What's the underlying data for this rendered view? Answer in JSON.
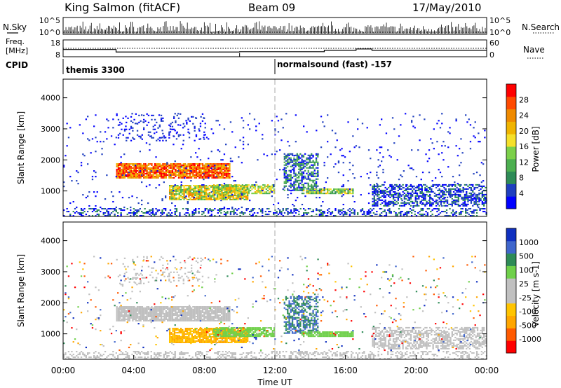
{
  "header": {
    "station": "King Salmon (fitACF)",
    "beam": "Beam 09",
    "date": "17/May/2010"
  },
  "left_labels": {
    "nsky": "N.Sky",
    "freq": "Freq.",
    "freq_unit": "[MHz]",
    "cpid": "CPID"
  },
  "right_labels": {
    "nsearch": "N.Search",
    "nave": "Nave"
  },
  "cpid_segments": [
    {
      "label": "themis 3300",
      "start_hour": 0
    },
    {
      "label": "normalsound (fast) -157",
      "start_hour": 12
    }
  ],
  "colors": {
    "power": [
      "#0000ff",
      "#1f3fbf",
      "#2e8b57",
      "#4caf50",
      "#7cd04a",
      "#f5e02a",
      "#f0b400",
      "#ef8a00",
      "#ff4a00",
      "#ff0000"
    ],
    "velocity": [
      "#ff0000",
      "#ff5a00",
      "#ffa600",
      "#ffc400",
      "#c0c0c0",
      "#c0c0c0",
      "#6fd04a",
      "#2e8b57",
      "#3f66cc",
      "#1030c0"
    ],
    "frame": "#000000",
    "dash_line": "#aaaaaa"
  },
  "chart_data": [
    {
      "type": "line",
      "name": "nsky-nsearch",
      "yaxis_left_ticks": [
        "10^5",
        "10^0"
      ],
      "yaxis_right_ticks": [
        "10^5",
        "10^0"
      ],
      "xlim": [
        0,
        24
      ]
    },
    {
      "type": "line",
      "name": "freq-nave",
      "yaxis_left_ticks": [
        "18",
        "8"
      ],
      "yaxis_right_ticks": [
        "60",
        "0"
      ],
      "freq_mhz": [
        {
          "x_start": 0.0,
          "x_end": 3.0,
          "value": 12.3
        },
        {
          "x_start": 3.0,
          "x_end": 10.0,
          "value": 10.8
        },
        {
          "x_start": 10.0,
          "x_end": 14.8,
          "value": 11.0
        },
        {
          "x_start": 14.8,
          "x_end": 16.6,
          "value": 11.8
        },
        {
          "x_start": 16.6,
          "x_end": 17.5,
          "value": 12.6
        },
        {
          "x_start": 17.5,
          "x_end": 24.0,
          "value": 11.8
        }
      ],
      "nave_value": 30,
      "xlim": [
        0,
        24
      ]
    },
    {
      "type": "heatmap",
      "name": "power",
      "ylabel": "Slant Range [km]",
      "ylim": [
        180,
        4600
      ],
      "yticks": [
        1000,
        2000,
        3000,
        4000
      ],
      "xlim": [
        0,
        24
      ],
      "colorbar_label": "Power [dB]",
      "colorbar_ticks": [
        4,
        8,
        12,
        16,
        20,
        24,
        28
      ]
    },
    {
      "type": "heatmap",
      "name": "velocity",
      "ylabel": "Slant Range [km]",
      "xlabel": "Time UT",
      "ylim": [
        180,
        4600
      ],
      "yticks": [
        1000,
        2000,
        3000,
        4000
      ],
      "xlim": [
        0,
        24
      ],
      "xticks": [
        "00:00",
        "04:00",
        "08:00",
        "12:00",
        "16:00",
        "20:00",
        "00:00"
      ],
      "colorbar_label": "Velocity [m s-1]",
      "colorbar_ticks": [
        -1000,
        -500,
        -100,
        -25,
        25,
        100,
        500,
        1000
      ]
    }
  ]
}
